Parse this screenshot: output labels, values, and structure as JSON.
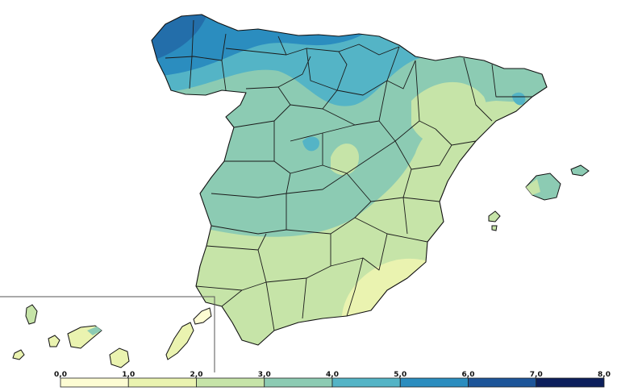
{
  "legend": {
    "ticks": [
      "0,0",
      "1,0",
      "2,0",
      "3,0",
      "4,0",
      "5,0",
      "6,0",
      "7,0",
      "8,0"
    ],
    "bins": [
      {
        "from": 0,
        "to": 1,
        "color": "#fdfcd3"
      },
      {
        "from": 1,
        "to": 2,
        "color": "#eaf3b0"
      },
      {
        "from": 2,
        "to": 3,
        "color": "#c6e4a8"
      },
      {
        "from": 3,
        "to": 4,
        "color": "#8ccbb3"
      },
      {
        "from": 4,
        "to": 5,
        "color": "#54b4c6"
      },
      {
        "from": 5,
        "to": 6,
        "color": "#2b8dbf"
      },
      {
        "from": 6,
        "to": 7,
        "color": "#1d5599"
      },
      {
        "from": 7,
        "to": 8,
        "color": "#0c1f5c"
      }
    ]
  },
  "inset": {
    "region": "Canary Islands"
  }
}
